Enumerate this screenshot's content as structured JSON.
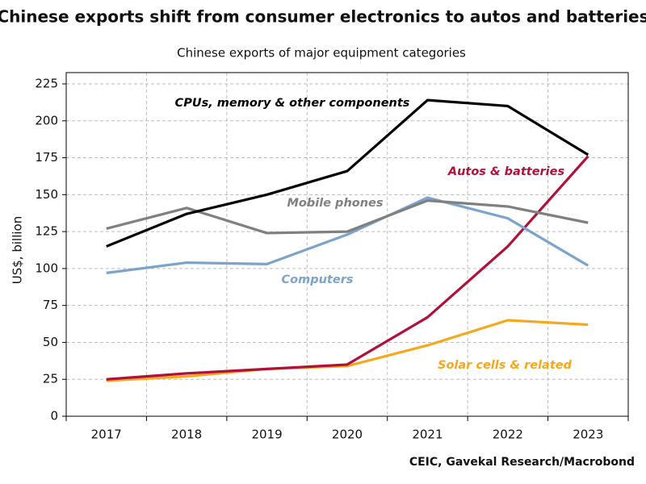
{
  "chart_data": {
    "type": "line",
    "title": "Chinese exports shift from consumer electronics to autos and batteries",
    "subtitle": "Chinese exports of major equipment categories",
    "y_label": "US$, billion",
    "source": "CEIC, Gavekal Research/Macrobond",
    "categories": [
      "2017",
      "2018",
      "2019",
      "2020",
      "2021",
      "2022",
      "2023"
    ],
    "series": [
      {
        "name": "CPUs, memory & other components",
        "color": "#000000",
        "values": [
          115,
          137,
          150,
          166,
          214,
          210,
          177
        ]
      },
      {
        "name": "Mobile phones",
        "color": "#808080",
        "values": [
          127,
          141,
          124,
          125,
          146,
          142,
          131
        ]
      },
      {
        "name": "Computers",
        "color": "#7ba3cc",
        "values": [
          97,
          104,
          103,
          123,
          148,
          134,
          102
        ]
      },
      {
        "name": "Autos & batteries",
        "color": "#b0113a",
        "values": [
          25,
          29,
          32,
          35,
          67,
          115,
          176
        ]
      },
      {
        "name": "Solar cells & related",
        "color": "#f5a81c",
        "values": [
          24,
          27,
          32,
          34,
          48,
          65,
          62
        ]
      }
    ],
    "ylim": [
      0,
      225
    ],
    "yticks": [
      0,
      25,
      50,
      75,
      100,
      125,
      150,
      175,
      200,
      225
    ],
    "grid": true
  }
}
